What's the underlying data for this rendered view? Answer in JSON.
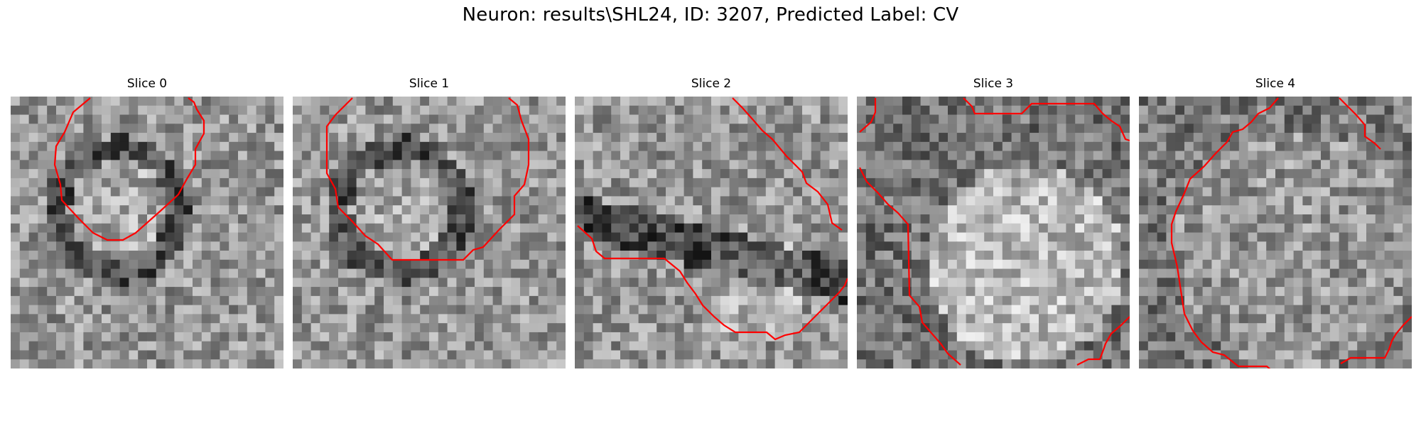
{
  "figure": {
    "title": "Neuron: results\\SHL24, ID: 3207, Predicted Label: CV"
  },
  "panels": [
    {
      "label": "Slice 0",
      "seed": 11,
      "dark": "ring",
      "contour_color": "#ff0000"
    },
    {
      "label": "Slice 1",
      "seed": 23,
      "dark": "ring",
      "contour_color": "#ff0000"
    },
    {
      "label": "Slice 2",
      "seed": 37,
      "dark": "band",
      "contour_color": "#ff0000"
    },
    {
      "label": "Slice 3",
      "seed": 41,
      "dark": "bright-center",
      "contour_color": "#ff0000"
    },
    {
      "label": "Slice 4",
      "seed": 53,
      "dark": "noise",
      "contour_color": "#ff0000"
    }
  ]
}
